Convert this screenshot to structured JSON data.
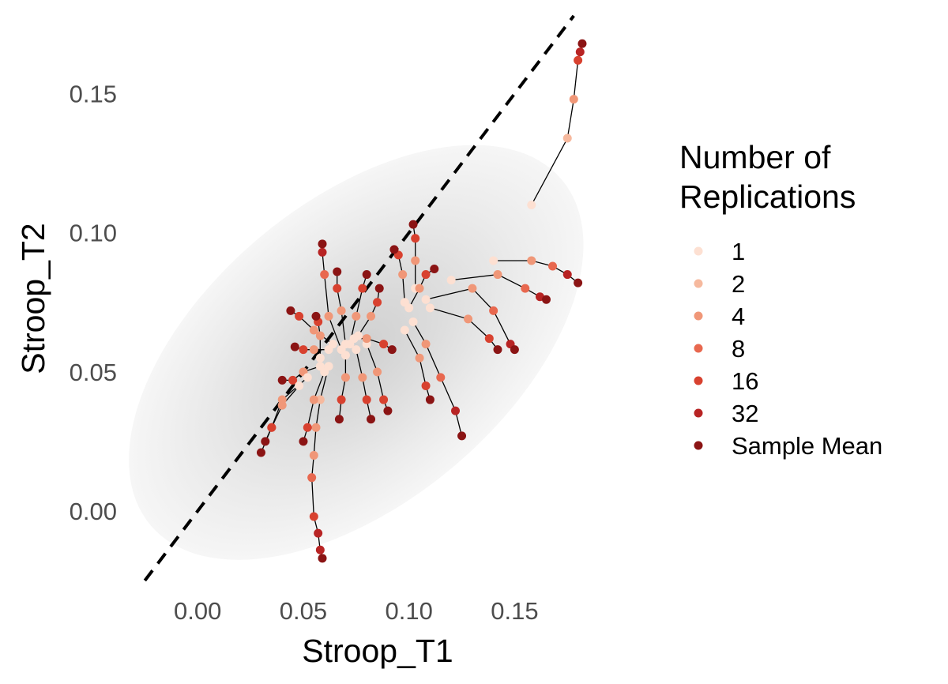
{
  "chart_data": {
    "type": "scatter",
    "xlabel": "Stroop_T1",
    "ylabel": "Stroop_T2",
    "xlim": [
      -0.03,
      0.185
    ],
    "ylim": [
      -0.025,
      0.178
    ],
    "x_ticks": [
      0.0,
      0.05,
      0.1,
      0.15
    ],
    "y_ticks": [
      0.0,
      0.05,
      0.1,
      0.15
    ],
    "x_tick_labels": [
      "0.00",
      "0.05",
      "0.10",
      "0.15"
    ],
    "y_tick_labels": [
      "0.00",
      "0.05",
      "0.10",
      "0.15"
    ],
    "grid": false,
    "reference_line": {
      "type": "identity",
      "style": "dashed",
      "color": "#000000"
    },
    "background_density": {
      "center": [
        0.075,
        0.057
      ],
      "color": "#d9d9d9",
      "shape": "tilted ellipse"
    },
    "legend": {
      "title_lines": [
        "Number of",
        "Replications"
      ],
      "placement": "right",
      "entries": [
        {
          "label": "1",
          "color": "#fde0d2"
        },
        {
          "label": "2",
          "color": "#f6b99e"
        },
        {
          "label": "4",
          "color": "#f09778"
        },
        {
          "label": "8",
          "color": "#e8684f"
        },
        {
          "label": "16",
          "color": "#d8412f"
        },
        {
          "label": "32",
          "color": "#b82424"
        },
        {
          "label": "Sample Mean",
          "color": "#8b1414"
        }
      ]
    },
    "trajectories": [
      {
        "points": [
          [
            0.158,
            0.11
          ],
          [
            0.175,
            0.134
          ],
          [
            0.178,
            0.148
          ],
          [
            0.18,
            0.162
          ],
          [
            0.181,
            0.165
          ],
          [
            0.182,
            0.168
          ]
        ]
      },
      {
        "points": [
          [
            0.14,
            0.09
          ],
          [
            0.158,
            0.09
          ],
          [
            0.168,
            0.088
          ],
          [
            0.175,
            0.085
          ],
          [
            0.18,
            0.082
          ]
        ]
      },
      {
        "points": [
          [
            0.12,
            0.083
          ],
          [
            0.142,
            0.085
          ],
          [
            0.155,
            0.08
          ],
          [
            0.162,
            0.077
          ],
          [
            0.165,
            0.076
          ]
        ]
      },
      {
        "points": [
          [
            0.108,
            0.076
          ],
          [
            0.13,
            0.08
          ],
          [
            0.14,
            0.072
          ],
          [
            0.148,
            0.06
          ],
          [
            0.15,
            0.058
          ]
        ]
      },
      {
        "points": [
          [
            0.11,
            0.073
          ],
          [
            0.128,
            0.069
          ],
          [
            0.138,
            0.062
          ],
          [
            0.142,
            0.058
          ]
        ]
      },
      {
        "points": [
          [
            0.102,
            0.068
          ],
          [
            0.108,
            0.06
          ],
          [
            0.115,
            0.048
          ],
          [
            0.122,
            0.036
          ],
          [
            0.125,
            0.027
          ]
        ]
      },
      {
        "points": [
          [
            0.098,
            0.065
          ],
          [
            0.105,
            0.055
          ],
          [
            0.108,
            0.045
          ],
          [
            0.11,
            0.04
          ]
        ]
      },
      {
        "points": [
          [
            0.103,
            0.08
          ],
          [
            0.103,
            0.09
          ],
          [
            0.103,
            0.098
          ],
          [
            0.102,
            0.103
          ]
        ]
      },
      {
        "points": [
          [
            0.098,
            0.075
          ],
          [
            0.097,
            0.085
          ],
          [
            0.095,
            0.092
          ],
          [
            0.093,
            0.094
          ]
        ]
      },
      {
        "points": [
          [
            0.1,
            0.073
          ],
          [
            0.105,
            0.08
          ],
          [
            0.108,
            0.085
          ],
          [
            0.112,
            0.087
          ]
        ]
      },
      {
        "points": [
          [
            0.08,
            0.06
          ],
          [
            0.085,
            0.05
          ],
          [
            0.088,
            0.04
          ],
          [
            0.09,
            0.036
          ]
        ]
      },
      {
        "points": [
          [
            0.075,
            0.058
          ],
          [
            0.078,
            0.048
          ],
          [
            0.08,
            0.04
          ],
          [
            0.082,
            0.033
          ]
        ]
      },
      {
        "points": [
          [
            0.07,
            0.056
          ],
          [
            0.07,
            0.048
          ],
          [
            0.068,
            0.04
          ],
          [
            0.067,
            0.033
          ]
        ]
      },
      {
        "points": [
          [
            0.062,
            0.052
          ],
          [
            0.058,
            0.04
          ],
          [
            0.056,
            0.03
          ],
          [
            0.055,
            0.02
          ],
          [
            0.054,
            0.012
          ],
          [
            0.055,
            -0.002
          ],
          [
            0.057,
            -0.008
          ],
          [
            0.058,
            -0.014
          ],
          [
            0.059,
            -0.017
          ]
        ]
      },
      {
        "points": [
          [
            0.06,
            0.05
          ],
          [
            0.055,
            0.04
          ],
          [
            0.052,
            0.03
          ],
          [
            0.05,
            0.025
          ]
        ]
      },
      {
        "points": [
          [
            0.068,
            0.058
          ],
          [
            0.062,
            0.07
          ],
          [
            0.06,
            0.085
          ],
          [
            0.059,
            0.093
          ],
          [
            0.059,
            0.096
          ]
        ]
      },
      {
        "points": [
          [
            0.07,
            0.06
          ],
          [
            0.068,
            0.072
          ],
          [
            0.066,
            0.08
          ],
          [
            0.066,
            0.086
          ]
        ]
      },
      {
        "points": [
          [
            0.072,
            0.06
          ],
          [
            0.075,
            0.07
          ],
          [
            0.078,
            0.08
          ],
          [
            0.08,
            0.085
          ]
        ]
      },
      {
        "points": [
          [
            0.076,
            0.063
          ],
          [
            0.082,
            0.07
          ],
          [
            0.085,
            0.075
          ],
          [
            0.086,
            0.08
          ]
        ]
      },
      {
        "points": [
          [
            0.074,
            0.062
          ],
          [
            0.08,
            0.062
          ],
          [
            0.088,
            0.06
          ],
          [
            0.092,
            0.058
          ]
        ]
      },
      {
        "points": [
          [
            0.064,
            0.06
          ],
          [
            0.055,
            0.065
          ],
          [
            0.048,
            0.07
          ],
          [
            0.044,
            0.072
          ]
        ]
      },
      {
        "points": [
          [
            0.062,
            0.058
          ],
          [
            0.055,
            0.058
          ],
          [
            0.05,
            0.058
          ],
          [
            0.046,
            0.059
          ]
        ]
      },
      {
        "points": [
          [
            0.058,
            0.052
          ],
          [
            0.05,
            0.05
          ],
          [
            0.045,
            0.047
          ],
          [
            0.04,
            0.047
          ]
        ]
      },
      {
        "points": [
          [
            0.052,
            0.048
          ],
          [
            0.04,
            0.04
          ],
          [
            0.035,
            0.03
          ],
          [
            0.03,
            0.021
          ]
        ]
      },
      {
        "points": [
          [
            0.048,
            0.045
          ],
          [
            0.04,
            0.038
          ],
          [
            0.035,
            0.03
          ],
          [
            0.032,
            0.025
          ]
        ]
      },
      {
        "points": [
          [
            0.058,
            0.055
          ],
          [
            0.058,
            0.063
          ],
          [
            0.057,
            0.068
          ],
          [
            0.056,
            0.07
          ]
        ]
      }
    ]
  }
}
